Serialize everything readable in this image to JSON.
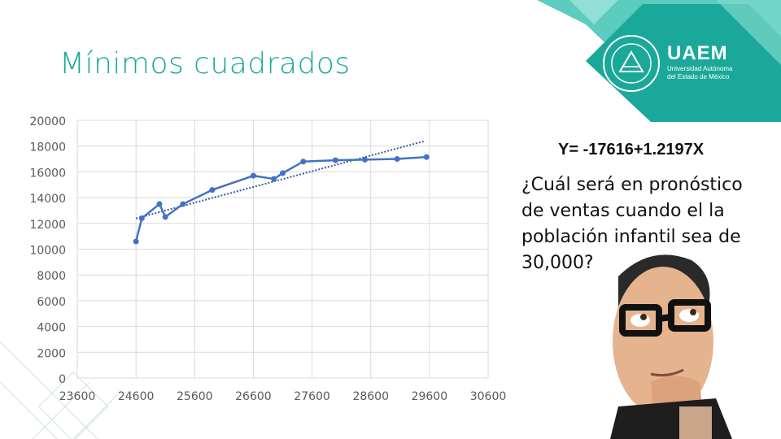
{
  "slide": {
    "title": "Mínimos cuadrados",
    "equation": "Y= -17616+1.2197X",
    "question": "¿Cuál será en pronóstico de ventas cuando el la población infantil sea de 30,000?"
  },
  "logo": {
    "name": "UAEM",
    "subtitle_line1": "Universidad Autónoma",
    "subtitle_line2": "del Estado de México"
  },
  "colors": {
    "accent": "#1aa89a",
    "series": "#4472c4",
    "grid": "#d9d9d9"
  },
  "chart_data": {
    "type": "scatter",
    "xlim": [
      23600,
      30600
    ],
    "ylim": [
      0,
      20000
    ],
    "x_ticks": [
      23600,
      24600,
      25600,
      26600,
      27600,
      28600,
      29600,
      30600
    ],
    "y_ticks": [
      0,
      2000,
      4000,
      6000,
      8000,
      10000,
      12000,
      14000,
      16000,
      18000,
      20000
    ],
    "grid": true,
    "series": [
      {
        "values_xy": [
          [
            24600,
            10600
          ],
          [
            24700,
            12400
          ],
          [
            25000,
            13500
          ],
          [
            25100,
            12500
          ],
          [
            25400,
            13500
          ],
          [
            25900,
            14600
          ],
          [
            26600,
            15700
          ],
          [
            26950,
            15450
          ],
          [
            27100,
            15900
          ],
          [
            27450,
            16800
          ],
          [
            28000,
            16900
          ],
          [
            28500,
            16950
          ],
          [
            29050,
            17000
          ],
          [
            29550,
            17150
          ]
        ],
        "connected": true,
        "marker": "circle"
      }
    ],
    "trendline": {
      "type": "linear",
      "style": "dotted",
      "intercept": -17616,
      "slope": 1.2197,
      "x_range": [
        24600,
        29500
      ]
    }
  }
}
